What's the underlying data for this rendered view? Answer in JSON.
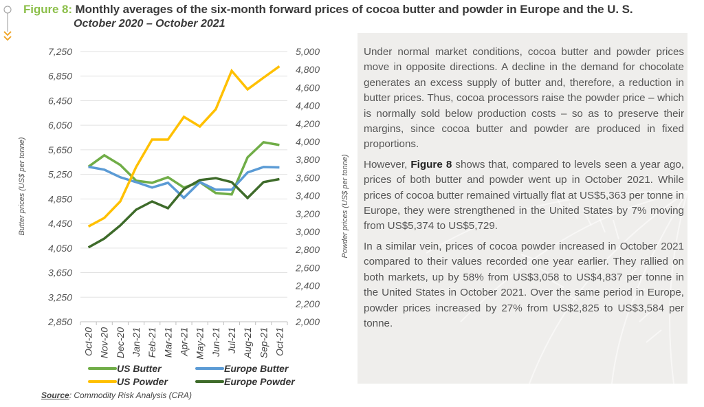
{
  "header": {
    "figure_label": "Figure 8:",
    "title": "Monthly averages of the six-month forward prices of cocoa butter and powder in Europe and the U. S.",
    "subtitle": "October 2020 – October 2021"
  },
  "source": {
    "label": "Source",
    "text": ": Commodity Risk Analysis (CRA)"
  },
  "panel": {
    "p1": "Under normal market conditions, cocoa butter and powder prices move in opposite directions. A decline in the demand for chocolate generates an excess supply of butter and, therefore, a reduction in butter prices. Thus, cocoa processors raise the powder price – which is normally sold below production costs – so as to preserve their margins, since cocoa butter and powder are produced in fixed proportions.",
    "p2_before": "However, ",
    "p2_bold": "Figure 8",
    "p2_after": " shows that, compared to levels seen a year ago, prices of both butter and powder went up in October 2021. While prices of cocoa butter remained virtually flat at US$5,363 per tonne in Europe, they were strengthened in the United States by 7% moving from US$5,374 to US$5,729.",
    "p3": "In a similar vein, prices of cocoa powder increased in October 2021 compared to their values recorded one year earlier. They rallied on both markets, up by 58% from US$3,058 to US$4,837 per tonne in the United States in October 2021. Over the same period in Europe, powder prices increased by 27% from US$2,825 to US$3,584 per tonne."
  },
  "chart_data": {
    "type": "line",
    "title": "Monthly averages of the six-month forward prices of cocoa butter and powder in Europe and the U. S.",
    "subtitle": "October 2020 – October 2021",
    "categories": [
      "Oct-20",
      "Nov-20",
      "Dec-20",
      "Jan-21",
      "Feb-21",
      "Mar-21",
      "Apr-21",
      "May-21",
      "Jun-21",
      "Jul-21",
      "Aug-21",
      "Sep-21",
      "Oct-21"
    ],
    "ylabel": "Butter prices (US$ per tonne)",
    "y2label": "Powder prices (US$ per tonne)",
    "ylim": [
      2850,
      7250
    ],
    "y_ticks": [
      "7,250",
      "6,850",
      "6,450",
      "6,050",
      "5,650",
      "5,250",
      "4,850",
      "4,450",
      "4,050",
      "3,650",
      "3,250",
      "2,850"
    ],
    "y_tick_values": [
      7250,
      6850,
      6450,
      6050,
      5650,
      5250,
      4850,
      4450,
      4050,
      3650,
      3250,
      2850
    ],
    "y2lim": [
      2000,
      5000
    ],
    "y2_ticks": [
      "5,000",
      "4,800",
      "4,600",
      "4,400",
      "4,200",
      "4,000",
      "3,800",
      "3,600",
      "3,400",
      "3,200",
      "3,000",
      "2,800",
      "2,600",
      "2,400",
      "2,200",
      "2,000"
    ],
    "grid": true,
    "legend_position": "bottom",
    "series": [
      {
        "name": "US Butter",
        "axis": "left",
        "color": "#70ad47",
        "values": [
          5374,
          5560,
          5404,
          5147,
          5113,
          5203,
          5035,
          5124,
          4946,
          4924,
          5527,
          5773,
          5729
        ]
      },
      {
        "name": "Europe Butter",
        "axis": "left",
        "color": "#5b9bd5",
        "values": [
          5374,
          5326,
          5203,
          5124,
          5035,
          5113,
          4867,
          5124,
          5001,
          5001,
          5281,
          5370,
          5363
        ]
      },
      {
        "name": "US Powder",
        "axis": "right",
        "color": "#ffc000",
        "values": [
          3058,
          3153,
          3336,
          3718,
          4023,
          4023,
          4275,
          4168,
          4359,
          4786,
          4580,
          4710,
          4837
        ]
      },
      {
        "name": "Europe Powder",
        "axis": "right",
        "color": "#3e6b2a",
        "values": [
          2825,
          2924,
          3069,
          3244,
          3336,
          3260,
          3473,
          3573,
          3595,
          3550,
          3374,
          3550,
          3584
        ]
      }
    ]
  }
}
